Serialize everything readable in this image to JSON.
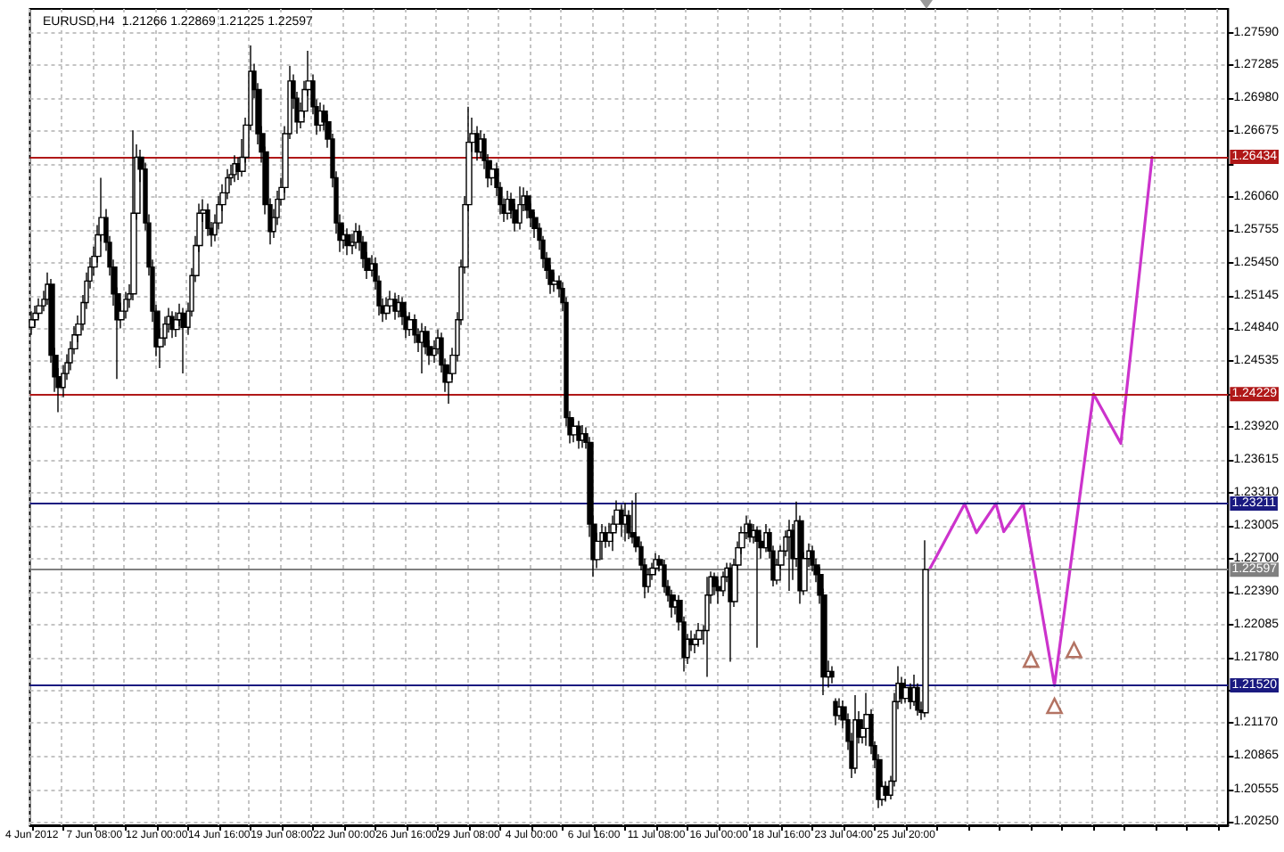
{
  "chart_data": {
    "type": "candlestick",
    "title": "EURUSD,H4  1.21266 1.22869 1.21225 1.22597",
    "categories": [
      "4 Jun 2012",
      null,
      null,
      null,
      null,
      null,
      null,
      null,
      null,
      null,
      null,
      null,
      null,
      null,
      null,
      null,
      "7 Jun 08:00",
      null,
      null,
      null,
      null,
      null,
      null,
      null,
      null,
      null,
      null,
      null,
      null,
      null,
      null,
      null,
      "12 Jun 00:00",
      null,
      null,
      null,
      null,
      null,
      null,
      null,
      null,
      null,
      null,
      null,
      null,
      null,
      null,
      null,
      "14 Jun 16:00",
      null,
      null,
      null,
      null,
      null,
      null,
      null,
      null,
      null,
      null,
      null,
      null,
      null,
      null,
      null,
      "19 Jun 08:00",
      null,
      null,
      null,
      null,
      null,
      null,
      null,
      null,
      null,
      null,
      null,
      null,
      null,
      null,
      null,
      "22 Jun 00:00",
      null,
      null,
      null,
      null,
      null,
      null,
      null,
      null,
      null,
      null,
      null,
      null,
      null,
      null,
      null,
      "26 Jun 16:00",
      null,
      null,
      null,
      null,
      null,
      null,
      null,
      null,
      null,
      null,
      null,
      null,
      null,
      null,
      null,
      "29 Jun 08:00",
      null,
      null,
      null,
      null,
      null,
      null,
      null,
      null,
      null,
      null,
      null,
      null,
      null,
      null,
      null,
      "4 Jul 00:00",
      null,
      null,
      null,
      null,
      null,
      null,
      null,
      null,
      null,
      null,
      null,
      null,
      null,
      null,
      null,
      "6 Jul 16:00",
      null,
      null,
      null,
      null,
      null,
      null,
      null,
      null,
      null,
      null,
      null,
      null,
      null,
      null,
      null,
      "11 Jul 08:00",
      null,
      null,
      null,
      null,
      null,
      null,
      null,
      null,
      null,
      null,
      null,
      null,
      null,
      null,
      null,
      "16 Jul 00:00",
      null,
      null,
      null,
      null,
      null,
      null,
      null,
      null,
      null,
      null,
      null,
      null,
      null,
      null,
      null,
      "18 Jul 16:00",
      null,
      null,
      null,
      null,
      null,
      null,
      null,
      null,
      null,
      null,
      null,
      null,
      null,
      null,
      null,
      "23 Jul 04:00",
      null,
      null,
      null,
      null,
      null,
      null,
      null,
      null,
      null,
      null,
      null,
      null,
      null,
      null,
      null,
      "25 Jul 20:00",
      null,
      null,
      null,
      null,
      null,
      null,
      null,
      null,
      null,
      null,
      null,
      null,
      null,
      null,
      null,
      null,
      null,
      null,
      null,
      null,
      null,
      null,
      null,
      null,
      null,
      null,
      null,
      null,
      null,
      null,
      null,
      null,
      null,
      null,
      null,
      null,
      null,
      null,
      null,
      null,
      null,
      null,
      null,
      null,
      null,
      null,
      null,
      null,
      null,
      null,
      null,
      null,
      null,
      null,
      null,
      null,
      null,
      null,
      null,
      null,
      null,
      null,
      null,
      null,
      null,
      null,
      null,
      null,
      null,
      null,
      null,
      null,
      null,
      null,
      null,
      null,
      null,
      null,
      null,
      null,
      null,
      null
    ],
    "color": "#000000",
    "ohlc": [
      [
        1.2485,
        1.25,
        1.2478,
        1.2492
      ],
      [
        1.2492,
        1.2505,
        1.2486,
        1.2498
      ],
      [
        1.2498,
        1.2512,
        1.2493,
        1.2505
      ],
      [
        1.2505,
        1.2519,
        1.25,
        1.2511
      ],
      [
        1.2511,
        1.2536,
        1.2506,
        1.2525
      ],
      [
        1.2525,
        1.253,
        1.2452,
        1.2459
      ],
      [
        1.2459,
        1.2466,
        1.2425,
        1.2439
      ],
      [
        1.2439,
        1.2447,
        1.2406,
        1.2429
      ],
      [
        1.2429,
        1.245,
        1.242,
        1.2442
      ],
      [
        1.2442,
        1.246,
        1.2436,
        1.2452
      ],
      [
        1.2452,
        1.2472,
        1.2445,
        1.2465
      ],
      [
        1.2465,
        1.2486,
        1.246,
        1.2478
      ],
      [
        1.2478,
        1.2496,
        1.2471,
        1.2488
      ],
      [
        1.2488,
        1.2515,
        1.2482,
        1.2508
      ],
      [
        1.2508,
        1.2536,
        1.2502,
        1.2528
      ],
      [
        1.2528,
        1.255,
        1.2521,
        1.2541
      ],
      [
        1.2541,
        1.256,
        1.2533,
        1.2551
      ],
      [
        1.2551,
        1.258,
        1.2545,
        1.2571
      ],
      [
        1.2571,
        1.2624,
        1.2565,
        1.2587
      ],
      [
        1.2587,
        1.2595,
        1.2556,
        1.2564
      ],
      [
        1.2564,
        1.257,
        1.2533,
        1.2541
      ],
      [
        1.2541,
        1.2548,
        1.2505,
        1.2516
      ],
      [
        1.2516,
        1.2522,
        1.2437,
        1.2492
      ],
      [
        1.2492,
        1.2508,
        1.2484,
        1.25
      ],
      [
        1.25,
        1.2518,
        1.2493,
        1.2511
      ],
      [
        1.2511,
        1.2525,
        1.2503,
        1.2516
      ],
      [
        1.2516,
        1.2668,
        1.251,
        1.2591
      ],
      [
        1.2591,
        1.2655,
        1.2585,
        1.2643
      ],
      [
        1.2643,
        1.265,
        1.262,
        1.2632
      ],
      [
        1.2632,
        1.2638,
        1.2575,
        1.2582
      ],
      [
        1.2582,
        1.259,
        1.2533,
        1.2541
      ],
      [
        1.2541,
        1.2548,
        1.249,
        1.25
      ],
      [
        1.25,
        1.2506,
        1.2458,
        1.2467
      ],
      [
        1.2467,
        1.2483,
        1.2447,
        1.2475
      ],
      [
        1.2475,
        1.2495,
        1.2468,
        1.2488
      ],
      [
        1.2488,
        1.2503,
        1.248,
        1.2495
      ],
      [
        1.2495,
        1.25,
        1.2475,
        1.2483
      ],
      [
        1.2483,
        1.2499,
        1.2476,
        1.2492
      ],
      [
        1.2492,
        1.2507,
        1.2486,
        1.2498
      ],
      [
        1.2498,
        1.2503,
        1.2442,
        1.2485
      ],
      [
        1.2485,
        1.2508,
        1.2478,
        1.25
      ],
      [
        1.25,
        1.254,
        1.2495,
        1.2533
      ],
      [
        1.2533,
        1.257,
        1.2527,
        1.2561
      ],
      [
        1.2561,
        1.26,
        1.2555,
        1.2591
      ],
      [
        1.2591,
        1.2604,
        1.2583,
        1.2594
      ],
      [
        1.2594,
        1.26,
        1.257,
        1.2577
      ],
      [
        1.2577,
        1.2583,
        1.256,
        1.2571
      ],
      [
        1.2571,
        1.259,
        1.2565,
        1.2582
      ],
      [
        1.2582,
        1.2607,
        1.2576,
        1.2599
      ],
      [
        1.2599,
        1.2618,
        1.2593,
        1.261
      ],
      [
        1.261,
        1.2632,
        1.2604,
        1.2624
      ],
      [
        1.2624,
        1.2636,
        1.2617,
        1.2627
      ],
      [
        1.2627,
        1.2645,
        1.262,
        1.2637
      ],
      [
        1.2637,
        1.2643,
        1.2622,
        1.263
      ],
      [
        1.263,
        1.266,
        1.2625,
        1.2643
      ],
      [
        1.2643,
        1.268,
        1.2638,
        1.2673
      ],
      [
        1.2673,
        1.2747,
        1.2668,
        1.2723
      ],
      [
        1.2723,
        1.273,
        1.2698,
        1.2706
      ],
      [
        1.2706,
        1.2712,
        1.2655,
        1.2665
      ],
      [
        1.2665,
        1.2672,
        1.2638,
        1.2648
      ],
      [
        1.2648,
        1.2653,
        1.259,
        1.2599
      ],
      [
        1.2599,
        1.2605,
        1.2562,
        1.2574
      ],
      [
        1.2574,
        1.2595,
        1.2568,
        1.2587
      ],
      [
        1.2587,
        1.2612,
        1.258,
        1.2604
      ],
      [
        1.2604,
        1.2624,
        1.2598,
        1.2615
      ],
      [
        1.2615,
        1.2672,
        1.261,
        1.2665
      ],
      [
        1.2665,
        1.2728,
        1.266,
        1.2714
      ],
      [
        1.2714,
        1.272,
        1.2688,
        1.2698
      ],
      [
        1.2698,
        1.2704,
        1.2665,
        1.2676
      ],
      [
        1.2676,
        1.2694,
        1.267,
        1.2686
      ],
      [
        1.2686,
        1.2714,
        1.268,
        1.2706
      ],
      [
        1.2706,
        1.2742,
        1.27,
        1.2714
      ],
      [
        1.2714,
        1.272,
        1.2683,
        1.269
      ],
      [
        1.269,
        1.2697,
        1.2664,
        1.2673
      ],
      [
        1.2673,
        1.2694,
        1.2667,
        1.2686
      ],
      [
        1.2686,
        1.2692,
        1.2668,
        1.2676
      ],
      [
        1.2676,
        1.2683,
        1.2652,
        1.266
      ],
      [
        1.266,
        1.2665,
        1.2615,
        1.2624
      ],
      [
        1.2624,
        1.263,
        1.2572,
        1.2582
      ],
      [
        1.2582,
        1.259,
        1.2555,
        1.2566
      ],
      [
        1.2566,
        1.258,
        1.2558,
        1.2571
      ],
      [
        1.2571,
        1.2577,
        1.2552,
        1.2561
      ],
      [
        1.2561,
        1.2572,
        1.2553,
        1.2564
      ],
      [
        1.2564,
        1.2582,
        1.2558,
        1.2574
      ],
      [
        1.2574,
        1.258,
        1.2556,
        1.2564
      ],
      [
        1.2564,
        1.257,
        1.254,
        1.2549
      ],
      [
        1.2549,
        1.2555,
        1.253,
        1.2538
      ],
      [
        1.2538,
        1.2552,
        1.2532,
        1.2544
      ],
      [
        1.2544,
        1.255,
        1.252,
        1.2528
      ],
      [
        1.2528,
        1.2533,
        1.2496,
        1.2505
      ],
      [
        1.2505,
        1.2512,
        1.249,
        1.2498
      ],
      [
        1.2498,
        1.2513,
        1.2492,
        1.2505
      ],
      [
        1.2505,
        1.2519,
        1.2499,
        1.2511
      ],
      [
        1.2511,
        1.2517,
        1.2492,
        1.25
      ],
      [
        1.25,
        1.2515,
        1.2494,
        1.2508
      ],
      [
        1.2508,
        1.2513,
        1.2487,
        1.2495
      ],
      [
        1.2495,
        1.25,
        1.2475,
        1.2483
      ],
      [
        1.2483,
        1.2499,
        1.2477,
        1.2492
      ],
      [
        1.2492,
        1.2497,
        1.247,
        1.2478
      ],
      [
        1.2478,
        1.2484,
        1.2462,
        1.2471
      ],
      [
        1.2471,
        1.2489,
        1.2442,
        1.2481
      ],
      [
        1.2481,
        1.2486,
        1.246,
        1.2467
      ],
      [
        1.2467,
        1.2473,
        1.245,
        1.2459
      ],
      [
        1.2459,
        1.2473,
        1.2452,
        1.2465
      ],
      [
        1.2465,
        1.2483,
        1.246,
        1.2475
      ],
      [
        1.2475,
        1.248,
        1.2443,
        1.245
      ],
      [
        1.245,
        1.2456,
        1.2425,
        1.2434
      ],
      [
        1.2434,
        1.245,
        1.2414,
        1.2442
      ],
      [
        1.2442,
        1.2466,
        1.2436,
        1.2459
      ],
      [
        1.2459,
        1.2499,
        1.2453,
        1.2492
      ],
      [
        1.2492,
        1.2548,
        1.2487,
        1.2541
      ],
      [
        1.2541,
        1.2607,
        1.2535,
        1.2599
      ],
      [
        1.2599,
        1.269,
        1.2593,
        1.2657
      ],
      [
        1.2657,
        1.268,
        1.2648,
        1.2665
      ],
      [
        1.2665,
        1.2672,
        1.264,
        1.2648
      ],
      [
        1.2648,
        1.2668,
        1.2642,
        1.266
      ],
      [
        1.266,
        1.2665,
        1.2632,
        1.264
      ],
      [
        1.264,
        1.2646,
        1.2615,
        1.2624
      ],
      [
        1.2624,
        1.264,
        1.2617,
        1.2632
      ],
      [
        1.2632,
        1.2638,
        1.2607,
        1.2615
      ],
      [
        1.2615,
        1.262,
        1.259,
        1.2599
      ],
      [
        1.2599,
        1.2605,
        1.2583,
        1.2591
      ],
      [
        1.2591,
        1.2612,
        1.2585,
        1.2604
      ],
      [
        1.2604,
        1.261,
        1.2586,
        1.2594
      ],
      [
        1.2594,
        1.26,
        1.2574,
        1.2582
      ],
      [
        1.2582,
        1.2616,
        1.2576,
        1.2599
      ],
      [
        1.2599,
        1.2615,
        1.2593,
        1.2607
      ],
      [
        1.2607,
        1.2612,
        1.2586,
        1.2594
      ],
      [
        1.2594,
        1.26,
        1.2578,
        1.2587
      ],
      [
        1.2587,
        1.2592,
        1.2568,
        1.2577
      ],
      [
        1.2577,
        1.2582,
        1.2557,
        1.2566
      ],
      [
        1.2566,
        1.257,
        1.254,
        1.2549
      ],
      [
        1.2549,
        1.2555,
        1.253,
        1.2538
      ],
      [
        1.2538,
        1.2543,
        1.2516,
        1.2525
      ],
      [
        1.2525,
        1.2536,
        1.2518,
        1.2528
      ],
      [
        1.2528,
        1.2533,
        1.2513,
        1.2521
      ],
      [
        1.2521,
        1.2527,
        1.25,
        1.2508
      ],
      [
        1.2508,
        1.2513,
        1.2393,
        1.2401
      ],
      [
        1.2401,
        1.2407,
        1.2377,
        1.2385
      ],
      [
        1.2385,
        1.24,
        1.2378,
        1.2393
      ],
      [
        1.2393,
        1.2398,
        1.2372,
        1.238
      ],
      [
        1.238,
        1.2394,
        1.2373,
        1.2386
      ],
      [
        1.2386,
        1.2392,
        1.2372,
        1.2378
      ],
      [
        1.2378,
        1.2383,
        1.229,
        1.2302
      ],
      [
        1.2302,
        1.231,
        1.2253,
        1.2269
      ],
      [
        1.2269,
        1.2294,
        1.2261,
        1.2286
      ],
      [
        1.2286,
        1.2302,
        1.2269,
        1.2294
      ],
      [
        1.2294,
        1.23,
        1.228,
        1.2286
      ],
      [
        1.2286,
        1.2303,
        1.2281,
        1.2294
      ],
      [
        1.2294,
        1.231,
        1.2277,
        1.2302
      ],
      [
        1.2302,
        1.2324,
        1.2296,
        1.2315
      ],
      [
        1.2315,
        1.232,
        1.229,
        1.2302
      ],
      [
        1.2302,
        1.2322,
        1.2286,
        1.231
      ],
      [
        1.231,
        1.2315,
        1.2288,
        1.2294
      ],
      [
        1.2294,
        1.2324,
        1.2284,
        1.229
      ],
      [
        1.229,
        1.2331,
        1.2276,
        1.2281
      ],
      [
        1.2281,
        1.2286,
        1.2259,
        1.2264
      ],
      [
        1.2264,
        1.227,
        1.2233,
        1.2244
      ],
      [
        1.2244,
        1.2261,
        1.2238,
        1.2255
      ],
      [
        1.2255,
        1.2266,
        1.225,
        1.2261
      ],
      [
        1.2261,
        1.2275,
        1.2255,
        1.2269
      ],
      [
        1.2269,
        1.2273,
        1.2258,
        1.2264
      ],
      [
        1.2264,
        1.2269,
        1.2238,
        1.2244
      ],
      [
        1.2244,
        1.225,
        1.223,
        1.2236
      ],
      [
        1.2236,
        1.2241,
        1.2215,
        1.2225
      ],
      [
        1.2225,
        1.2236,
        1.2218,
        1.2231
      ],
      [
        1.2231,
        1.2236,
        1.2203,
        1.2211
      ],
      [
        1.2211,
        1.2216,
        1.2165,
        1.2178
      ],
      [
        1.2178,
        1.22,
        1.2172,
        1.2195
      ],
      [
        1.2195,
        1.2203,
        1.2184,
        1.219
      ],
      [
        1.219,
        1.22,
        1.2182,
        1.2195
      ],
      [
        1.2195,
        1.221,
        1.2188,
        1.2203
      ],
      [
        1.2203,
        1.2208,
        1.219,
        1.2203
      ],
      [
        1.2203,
        1.2253,
        1.216,
        1.2236
      ],
      [
        1.2236,
        1.2258,
        1.2228,
        1.2253
      ],
      [
        1.2253,
        1.2257,
        1.2236,
        1.2244
      ],
      [
        1.2244,
        1.225,
        1.2228,
        1.224
      ],
      [
        1.224,
        1.2258,
        1.2235,
        1.2253
      ],
      [
        1.2253,
        1.2266,
        1.2248,
        1.2261
      ],
      [
        1.2261,
        1.2266,
        1.2174,
        1.223
      ],
      [
        1.223,
        1.227,
        1.2225,
        1.2264
      ],
      [
        1.2264,
        1.2286,
        1.2259,
        1.228
      ],
      [
        1.228,
        1.23,
        1.2274,
        1.2294
      ],
      [
        1.2294,
        1.231,
        1.2288,
        1.2302
      ],
      [
        1.2302,
        1.2306,
        1.2285,
        1.229
      ],
      [
        1.229,
        1.2302,
        1.2284,
        1.2296
      ],
      [
        1.2296,
        1.23,
        1.2187,
        1.2286
      ],
      [
        1.2286,
        1.2292,
        1.227,
        1.228
      ],
      [
        1.228,
        1.2302,
        1.2276,
        1.2294
      ],
      [
        1.2294,
        1.2298,
        1.227,
        1.2277
      ],
      [
        1.2277,
        1.2282,
        1.2244,
        1.225
      ],
      [
        1.225,
        1.227,
        1.2246,
        1.2264
      ],
      [
        1.2264,
        1.2282,
        1.226,
        1.2277
      ],
      [
        1.2277,
        1.2296,
        1.2272,
        1.229
      ],
      [
        1.229,
        1.2306,
        1.224,
        1.2296
      ],
      [
        1.2296,
        1.2302,
        1.225,
        1.227
      ],
      [
        1.227,
        1.2323,
        1.2262,
        1.2305
      ],
      [
        1.2305,
        1.231,
        1.2228,
        1.224
      ],
      [
        1.224,
        1.2276,
        1.2236,
        1.227
      ],
      [
        1.227,
        1.2284,
        1.2262,
        1.2277
      ],
      [
        1.2277,
        1.2282,
        1.2258,
        1.2264
      ],
      [
        1.2264,
        1.227,
        1.2248,
        1.2255
      ],
      [
        1.2255,
        1.2262,
        1.2228,
        1.2236
      ],
      [
        1.2236,
        1.2242,
        1.2143,
        1.216
      ],
      [
        1.216,
        1.2175,
        1.215,
        1.2165
      ],
      [
        1.2165,
        1.217,
        1.2154,
        1.216
      ],
      [
        1.2137,
        1.214,
        1.2115,
        1.2124
      ],
      [
        1.2124,
        1.214,
        1.212,
        1.2132
      ],
      [
        1.2132,
        1.2138,
        1.2112,
        1.212
      ],
      [
        1.212,
        1.2126,
        1.2092,
        1.21
      ],
      [
        1.21,
        1.2108,
        1.2066,
        1.2075
      ],
      [
        1.2075,
        1.2143,
        1.207,
        1.212
      ],
      [
        1.212,
        1.2128,
        1.2098,
        1.2104
      ],
      [
        1.2104,
        1.212,
        1.2098,
        1.2112
      ],
      [
        1.2112,
        1.2145,
        1.2096,
        1.2125
      ],
      [
        1.2125,
        1.213,
        1.2088,
        1.2096
      ],
      [
        1.2096,
        1.21,
        1.2075,
        1.2083
      ],
      [
        1.2083,
        1.2088,
        1.2038,
        1.2046
      ],
      [
        1.2046,
        1.2063,
        1.204,
        1.2058
      ],
      [
        1.2058,
        1.2063,
        1.2044,
        1.205
      ],
      [
        1.205,
        1.2068,
        1.2046,
        1.2063
      ],
      [
        1.2063,
        1.2145,
        1.2058,
        1.2137
      ],
      [
        1.2137,
        1.217,
        1.213,
        1.2154
      ],
      [
        1.2154,
        1.216,
        1.2135,
        1.214
      ],
      [
        1.214,
        1.2158,
        1.2136,
        1.215
      ],
      [
        1.215,
        1.2154,
        1.213,
        1.2137
      ],
      [
        1.2137,
        1.2162,
        1.2133,
        1.215
      ],
      [
        1.215,
        1.2154,
        1.2124,
        1.2129
      ],
      [
        1.2129,
        1.2137,
        1.212,
        1.2127
      ],
      [
        1.21266,
        1.22869,
        1.21225,
        1.22597
      ],
      null,
      null,
      null,
      null,
      null,
      null,
      null,
      null,
      null,
      null,
      null,
      null,
      null,
      null,
      null,
      null,
      null,
      null,
      null,
      null,
      null,
      null,
      null,
      null,
      null,
      null,
      null,
      null,
      null,
      null,
      null,
      null,
      null,
      null,
      null,
      null,
      null,
      null,
      null,
      null,
      null,
      null,
      null,
      null,
      null,
      null,
      null,
      null,
      null,
      null,
      null,
      null,
      null,
      null,
      null,
      null,
      null,
      null,
      null,
      null,
      null,
      null,
      null,
      null,
      null,
      null,
      null,
      null,
      null,
      null,
      null,
      null,
      null,
      null,
      null,
      null,
      null
    ],
    "series": [
      {
        "type": "line",
        "color": "#cc33cc",
        "values": [
          null,
          null,
          null,
          null,
          null,
          null,
          null,
          null,
          null,
          null,
          null,
          null,
          null,
          null,
          null,
          null,
          null,
          null,
          null,
          null,
          null,
          null,
          null,
          null,
          null,
          null,
          null,
          null,
          null,
          null,
          null,
          null,
          null,
          null,
          null,
          null,
          null,
          null,
          null,
          null,
          null,
          null,
          null,
          null,
          null,
          null,
          null,
          null,
          null,
          null,
          null,
          null,
          null,
          null,
          null,
          null,
          null,
          null,
          null,
          null,
          null,
          null,
          null,
          null,
          null,
          null,
          null,
          null,
          null,
          null,
          null,
          null,
          null,
          null,
          null,
          null,
          null,
          null,
          null,
          null,
          null,
          null,
          null,
          null,
          null,
          null,
          null,
          null,
          null,
          null,
          null,
          null,
          null,
          null,
          null,
          null,
          null,
          null,
          null,
          null,
          null,
          null,
          null,
          null,
          null,
          null,
          null,
          null,
          null,
          null,
          null,
          null,
          null,
          null,
          null,
          null,
          null,
          null,
          null,
          null,
          null,
          null,
          null,
          null,
          null,
          null,
          null,
          null,
          null,
          null,
          null,
          null,
          null,
          null,
          null,
          null,
          null,
          null,
          null,
          null,
          null,
          null,
          null,
          null,
          null,
          null,
          null,
          null,
          null,
          null,
          null,
          null,
          null,
          null,
          null,
          null,
          null,
          null,
          null,
          null,
          null,
          null,
          null,
          null,
          null,
          null,
          null,
          null,
          null,
          null,
          null,
          null,
          null,
          null,
          null,
          null,
          null,
          null,
          null,
          null,
          null,
          null,
          null,
          null,
          null,
          null,
          null,
          null,
          null,
          null,
          null,
          null,
          null,
          null,
          null,
          null,
          null,
          null,
          null,
          null,
          null,
          null,
          null,
          null,
          null,
          null,
          null,
          null,
          null,
          null,
          null,
          null,
          null,
          null,
          null,
          null,
          null,
          null,
          null,
          null,
          null,
          null,
          null,
          null,
          null,
          null,
          null,
          null,
          null,
          null,
          1.226,
          null,
          null,
          null,
          null,
          null,
          null,
          null,
          null,
          1.2321,
          null,
          null,
          1.2294,
          null,
          null,
          null,
          null,
          1.2321,
          null,
          1.2295,
          null,
          null,
          null,
          null,
          1.2321,
          null,
          null,
          null,
          null,
          null,
          null,
          null,
          1.2152,
          null,
          null,
          null,
          null,
          null,
          null,
          null,
          null,
          null,
          1.2423,
          null,
          null,
          null,
          null,
          null,
          null,
          1.2377,
          null,
          null,
          null,
          null,
          null,
          null,
          null,
          1.2643,
          null,
          null,
          null,
          null,
          null,
          null,
          null,
          null,
          null,
          null,
          null,
          null,
          null,
          null,
          null,
          null,
          null,
          null,
          null
        ]
      },
      {
        "type": "scatter",
        "color": "#a0503c",
        "marker": "triangle",
        "values": [
          null,
          null,
          null,
          null,
          null,
          null,
          null,
          null,
          null,
          null,
          null,
          null,
          null,
          null,
          null,
          null,
          null,
          null,
          null,
          null,
          null,
          null,
          null,
          null,
          null,
          null,
          null,
          null,
          null,
          null,
          null,
          null,
          null,
          null,
          null,
          null,
          null,
          null,
          null,
          null,
          null,
          null,
          null,
          null,
          null,
          null,
          null,
          null,
          null,
          null,
          null,
          null,
          null,
          null,
          null,
          null,
          null,
          null,
          null,
          null,
          null,
          null,
          null,
          null,
          null,
          null,
          null,
          null,
          null,
          null,
          null,
          null,
          null,
          null,
          null,
          null,
          null,
          null,
          null,
          null,
          null,
          null,
          null,
          null,
          null,
          null,
          null,
          null,
          null,
          null,
          null,
          null,
          null,
          null,
          null,
          null,
          null,
          null,
          null,
          null,
          null,
          null,
          null,
          null,
          null,
          null,
          null,
          null,
          null,
          null,
          null,
          null,
          null,
          null,
          null,
          null,
          null,
          null,
          null,
          null,
          null,
          null,
          null,
          null,
          null,
          null,
          null,
          null,
          null,
          null,
          null,
          null,
          null,
          null,
          null,
          null,
          null,
          null,
          null,
          null,
          null,
          null,
          null,
          null,
          null,
          null,
          null,
          null,
          null,
          null,
          null,
          null,
          null,
          null,
          null,
          null,
          null,
          null,
          null,
          null,
          null,
          null,
          null,
          null,
          null,
          null,
          null,
          null,
          null,
          null,
          null,
          null,
          null,
          null,
          null,
          null,
          null,
          null,
          null,
          null,
          null,
          null,
          null,
          null,
          null,
          null,
          null,
          null,
          null,
          null,
          null,
          null,
          null,
          null,
          null,
          null,
          null,
          null,
          null,
          null,
          null,
          null,
          null,
          null,
          null,
          null,
          null,
          null,
          null,
          null,
          null,
          null,
          null,
          null,
          null,
          null,
          null,
          null,
          null,
          null,
          null,
          null,
          null,
          null,
          null,
          null,
          null,
          null,
          null,
          null,
          null,
          null,
          null,
          null,
          null,
          null,
          null,
          null,
          null,
          null,
          null,
          null,
          null,
          null,
          null,
          null,
          null,
          null,
          null,
          null,
          null,
          null,
          null,
          null,
          null,
          null,
          1.2176,
          null,
          null,
          null,
          null,
          null,
          1.2133,
          null,
          null,
          null,
          null,
          1.2185,
          null,
          null,
          null,
          null,
          null,
          null,
          null,
          null,
          null,
          null,
          null,
          null,
          null,
          null,
          null,
          null,
          null,
          null,
          null,
          null,
          null,
          null,
          null,
          null,
          null,
          null,
          null,
          null,
          null,
          null,
          null,
          null,
          null,
          null,
          null,
          null,
          null,
          null,
          null
        ]
      }
    ],
    "ylim": [
      1.2022,
      1.2781
    ],
    "yticks": [
      {
        "value": 1.2759,
        "label": "1.27590"
      },
      {
        "value": 1.27285,
        "label": "1.27285"
      },
      {
        "value": 1.2698,
        "label": "1.26980"
      },
      {
        "value": 1.26675,
        "label": "1.26675"
      },
      {
        "value": 1.2637,
        "label": null
      },
      {
        "value": 1.2606,
        "label": "1.26060"
      },
      {
        "value": 1.25755,
        "label": "1.25755"
      },
      {
        "value": 1.2545,
        "label": "1.25450"
      },
      {
        "value": 1.25145,
        "label": "1.25145"
      },
      {
        "value": 1.2484,
        "label": "1.24840"
      },
      {
        "value": 1.24535,
        "label": "1.24535"
      },
      {
        "value": 1.2423,
        "label": null
      },
      {
        "value": 1.2392,
        "label": "1.23920"
      },
      {
        "value": 1.23615,
        "label": "1.23615"
      },
      {
        "value": 1.2331,
        "label": "1.23310"
      },
      {
        "value": 1.23005,
        "label": "1.23005"
      },
      {
        "value": 1.227,
        "label": "1.22700"
      },
      {
        "value": 1.2239,
        "label": "1.22390"
      },
      {
        "value": 1.22085,
        "label": "1.22085"
      },
      {
        "value": 1.2178,
        "label": "1.21780"
      },
      {
        "value": 1.21475,
        "label": null
      },
      {
        "value": 1.2117,
        "label": "1.21170"
      },
      {
        "value": 1.20865,
        "label": "1.20865"
      },
      {
        "value": 1.20555,
        "label": "1.20555"
      },
      {
        "value": 1.2025,
        "label": "1.20250"
      }
    ],
    "ref_lines": [
      {
        "axis": "y",
        "value": 1.26434,
        "label": "1.26434",
        "color": "#b01818"
      },
      {
        "axis": "y",
        "value": 1.24229,
        "label": "1.24229",
        "color": "#b01818"
      },
      {
        "axis": "y",
        "value": 1.23211,
        "label": "1.23211",
        "color": "#1a1a80"
      },
      {
        "axis": "y",
        "value": 1.22597,
        "label": "1.22597",
        "color": "#808080"
      },
      {
        "axis": "y",
        "value": 1.2152,
        "label": "1.21520",
        "color": "#1a1a80"
      }
    ],
    "grid": true
  }
}
